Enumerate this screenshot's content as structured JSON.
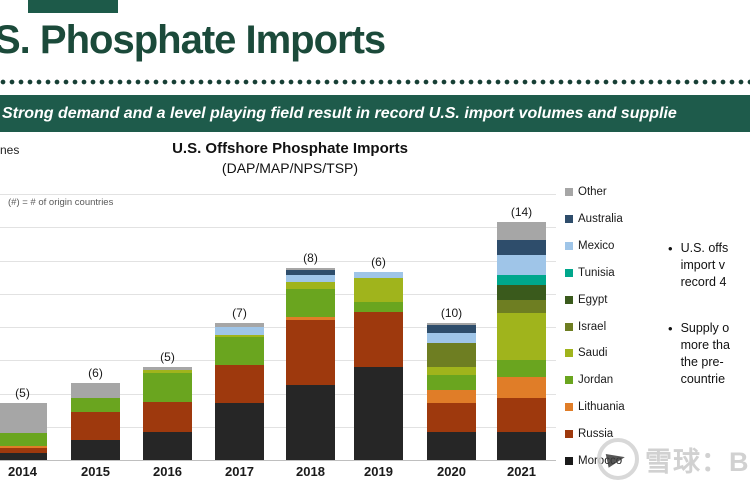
{
  "page": {
    "title": "S. Phosphate Imports",
    "banner": "Strong demand and a level playing field result in record U.S. import volumes and supplie"
  },
  "chart": {
    "title": "U.S. Offshore Phosphate Imports",
    "subtitle": "(DAP/MAP/NPS/TSP)",
    "note": "(#) = # of origin countries",
    "axis_label_fragment": "nes"
  },
  "chart_data": {
    "type": "bar",
    "stacked": true,
    "title": "U.S. Offshore Phosphate Imports (DAP/MAP/NPS/TSP)",
    "categories": [
      "2014",
      "2015",
      "2016",
      "2017",
      "2018",
      "2019",
      "2020",
      "2021"
    ],
    "bar_count_labels": [
      "(5)",
      "(6)",
      "(5)",
      "(7)",
      "(8)",
      "(6)",
      "(10)",
      "(14)"
    ],
    "units": "relative height (y-axis tick labels cropped out of screenshot)",
    "grid": true,
    "legend_position": "right",
    "series": [
      {
        "name": "Morocco",
        "color": "#262626",
        "values": [
          7,
          20,
          28,
          57,
          75,
          93,
          28,
          28
        ]
      },
      {
        "name": "Russia",
        "color": "#9e390d",
        "values": [
          5,
          28,
          30,
          38,
          65,
          55,
          29,
          34
        ]
      },
      {
        "name": "Lithuania",
        "color": "#e07d28",
        "values": [
          2,
          0,
          0,
          0,
          3,
          0,
          13,
          21
        ]
      },
      {
        "name": "Jordan",
        "color": "#6aa51f",
        "values": [
          13,
          14,
          29,
          28,
          28,
          10,
          15,
          17
        ]
      },
      {
        "name": "Saudi",
        "color": "#a0b41c",
        "values": [
          0,
          0,
          3,
          2,
          7,
          24,
          8,
          47
        ]
      },
      {
        "name": "Israel",
        "color": "#6e7e22",
        "values": [
          0,
          0,
          0,
          0,
          0,
          0,
          24,
          13
        ]
      },
      {
        "name": "Egypt",
        "color": "#3a5a1c",
        "values": [
          0,
          0,
          0,
          0,
          0,
          0,
          0,
          15
        ]
      },
      {
        "name": "Tunisia",
        "color": "#00a78c",
        "values": [
          0,
          0,
          0,
          0,
          0,
          0,
          0,
          10
        ]
      },
      {
        "name": "Mexico",
        "color": "#9fc5e8",
        "values": [
          0,
          0,
          0,
          8,
          7,
          6,
          10,
          20
        ]
      },
      {
        "name": "Australia",
        "color": "#2e4d6b",
        "values": [
          0,
          0,
          0,
          0,
          5,
          0,
          8,
          15
        ]
      },
      {
        "name": "Other",
        "color": "#a6a6a6",
        "values": [
          30,
          15,
          3,
          4,
          2,
          0,
          2,
          18
        ]
      }
    ]
  },
  "legend": [
    {
      "label": "Other",
      "color": "#a6a6a6"
    },
    {
      "label": "Australia",
      "color": "#2e4d6b"
    },
    {
      "label": "Mexico",
      "color": "#9fc5e8"
    },
    {
      "label": "Tunisia",
      "color": "#00a78c"
    },
    {
      "label": "Egypt",
      "color": "#3a5a1c"
    },
    {
      "label": "Israel",
      "color": "#6e7e22"
    },
    {
      "label": "Saudi",
      "color": "#a0b41c"
    },
    {
      "label": "Jordan",
      "color": "#6aa51f"
    },
    {
      "label": "Lithuania",
      "color": "#e07d28"
    },
    {
      "label": "Russia",
      "color": "#9e390d"
    },
    {
      "label": "Morocco",
      "color": "#1a1a1a"
    }
  ],
  "bullets": [
    {
      "lines": [
        "U.S. offs",
        "import v",
        "record 4"
      ]
    },
    {
      "lines": [
        "Supply o",
        "more tha",
        "the pre-",
        "countrie"
      ]
    }
  ],
  "watermark": {
    "text": "雪球：Big"
  }
}
